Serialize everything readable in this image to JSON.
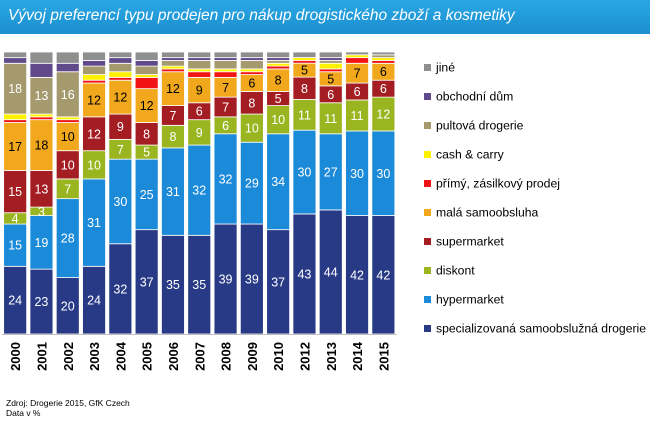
{
  "title": "Vývoj preferencí typu prodejen pro nákup drogistického zboží a kosmetiky",
  "footer": {
    "source": "Zdroj: Drogerie 2015, GfK Czech",
    "unit": "Data v %"
  },
  "colors": {
    "title_bar": "#1f97d8"
  },
  "chart_data": {
    "type": "bar",
    "stacked": true,
    "title": "Vývoj preferencí typu prodejen pro nákup drogistického zboží a kosmetiky",
    "ylim": [
      0,
      100
    ],
    "grid": false,
    "legend_position": "right",
    "categories": [
      "2000",
      "2001",
      "2002",
      "2003",
      "2004",
      "2005",
      "2006",
      "2007",
      "2008",
      "2009",
      "2010",
      "2012",
      "2013",
      "2014",
      "2015"
    ],
    "series": [
      {
        "name": "specializovaná samoobslužná drogerie",
        "color": "#283a86",
        "label_color": "#ffffff",
        "values": [
          24,
          23,
          20,
          24,
          32,
          37,
          35,
          35,
          39,
          39,
          37,
          43,
          44,
          42,
          42
        ]
      },
      {
        "name": "hypermarket",
        "color": "#1b8ad8",
        "label_color": "#ffffff",
        "values": [
          15,
          19,
          28,
          31,
          30,
          25,
          31,
          32,
          32,
          29,
          34,
          30,
          27,
          30,
          30
        ]
      },
      {
        "name": "diskont",
        "color": "#9ab51f",
        "label_color": "#ffffff",
        "values": [
          4,
          3,
          7,
          10,
          7,
          5,
          8,
          9,
          6,
          10,
          10,
          11,
          11,
          11,
          12
        ]
      },
      {
        "name": "supermarket",
        "color": "#a41d23",
        "label_color": "#ffffff",
        "values": [
          15,
          13,
          10,
          12,
          9,
          8,
          7,
          6,
          7,
          8,
          5,
          8,
          6,
          6,
          6
        ]
      },
      {
        "name": "malá samoobsluha",
        "color": "#f2a81c",
        "label_color": "#000000",
        "values": [
          17,
          18,
          10,
          12,
          12,
          12,
          12,
          9,
          7,
          6,
          8,
          5,
          5,
          7,
          6
        ]
      },
      {
        "name": "přímý, zásilkový prodej",
        "color": "#f01414",
        "label_color": "#ffffff",
        "values": [
          1,
          1,
          1,
          1,
          1,
          4,
          1,
          2,
          2,
          1,
          1,
          1,
          1,
          2,
          1
        ]
      },
      {
        "name": "cash & carry",
        "color": "#fff200",
        "label_color": "#000000",
        "values": [
          2,
          1,
          1,
          2,
          2,
          1,
          1,
          1,
          1,
          1,
          1,
          1,
          2,
          1,
          1
        ]
      },
      {
        "name": "pultová drogerie",
        "color": "#a59a6e",
        "label_color": "#ffffff",
        "values": [
          18,
          13,
          16,
          3,
          3,
          3,
          2,
          3,
          3,
          3,
          1,
          0,
          1,
          0,
          1
        ]
      },
      {
        "name": "obchodní dům",
        "color": "#604a8c",
        "label_color": "#ffffff",
        "values": [
          2,
          5,
          3,
          2,
          2,
          2,
          1,
          1,
          1,
          1,
          1,
          0,
          1,
          0,
          0
        ]
      },
      {
        "name": "jiné",
        "color": "#8f8f8f",
        "label_color": "#ffffff",
        "values": [
          2,
          4,
          4,
          3,
          2,
          3,
          2,
          2,
          2,
          2,
          2,
          2,
          2,
          1,
          1
        ]
      }
    ],
    "data_labels": [
      [
        "24",
        "23",
        "20",
        "24",
        "32",
        "37",
        "35",
        "35",
        "39",
        "39",
        "37",
        "43",
        "44",
        "42",
        "42"
      ],
      [
        "15",
        "19",
        "28",
        "31",
        "30",
        "25",
        "31",
        "32",
        "32",
        "29",
        "34",
        "30",
        "27",
        "30",
        "30"
      ],
      [
        "4",
        "3",
        "7",
        "10",
        "7",
        "5",
        "8",
        "9",
        "6",
        "10",
        "10",
        "11",
        "11",
        "11",
        "12"
      ],
      [
        "15",
        "13",
        "10",
        "12",
        "9",
        "8",
        "7",
        "6",
        "7",
        "8",
        "5",
        "8",
        "6",
        "6",
        "6"
      ],
      [
        "17",
        "18",
        "10",
        "12",
        "12",
        "12",
        "12",
        "9",
        "7",
        "6",
        "8",
        "5",
        "5",
        "7",
        "6"
      ],
      [
        "",
        "",
        "",
        "",
        "",
        "",
        "",
        "",
        "",
        "",
        "",
        "",
        "",
        "",
        ""
      ],
      [
        "",
        "",
        "",
        "",
        "",
        "",
        "",
        "",
        "",
        "",
        "",
        "",
        "",
        "",
        ""
      ],
      [
        "18",
        "13",
        "16",
        "",
        "",
        "",
        "",
        "",
        "",
        "",
        "",
        "",
        "",
        "",
        ""
      ],
      [
        "",
        "",
        "",
        "",
        "",
        "",
        "",
        "",
        "",
        "",
        "",
        "",
        "",
        "",
        ""
      ],
      [
        "",
        "",
        "",
        "",
        "",
        "",
        "",
        "",
        "",
        "",
        "",
        "",
        "",
        "",
        ""
      ]
    ]
  }
}
